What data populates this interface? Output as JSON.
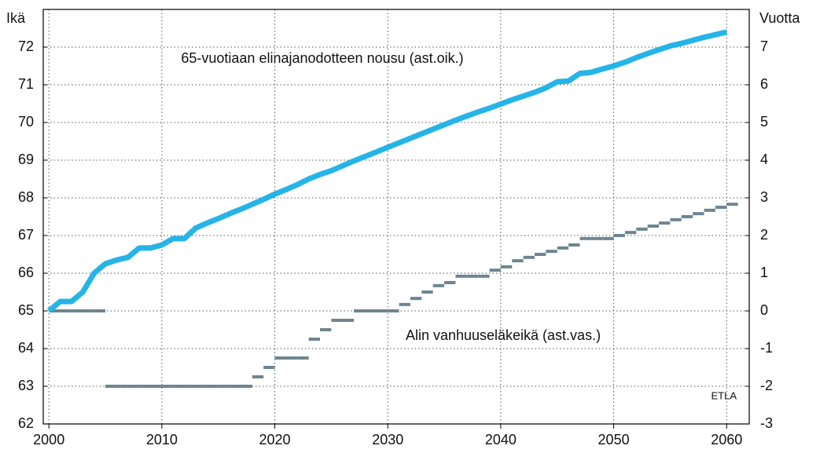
{
  "chart_data": {
    "type": "line",
    "y_label": "Ikä",
    "y2_label": "Vuotta",
    "annotations": [
      "65-vuotiaan elinajanodotteen nousu (ast.oik.)",
      "Alin vanhuuseläkeikä (ast.vas.)"
    ],
    "source": "ETLA",
    "x": [
      2000,
      2001,
      2002,
      2003,
      2004,
      2005,
      2006,
      2007,
      2008,
      2009,
      2010,
      2011,
      2012,
      2013,
      2014,
      2015,
      2016,
      2017,
      2018,
      2019,
      2020,
      2021,
      2022,
      2023,
      2024,
      2025,
      2026,
      2027,
      2028,
      2029,
      2030,
      2031,
      2032,
      2033,
      2034,
      2035,
      2036,
      2037,
      2038,
      2039,
      2040,
      2041,
      2042,
      2043,
      2044,
      2045,
      2046,
      2047,
      2048,
      2049,
      2050,
      2051,
      2052,
      2053,
      2054,
      2055,
      2056,
      2057,
      2058,
      2059,
      2060
    ],
    "series": [
      {
        "name": "65-vuotiaan elinajanodotteen nousu",
        "color": "#25b4e8",
        "axis": "y2",
        "values": [
          0,
          0.25,
          0.25,
          0.5,
          1.0,
          1.25,
          1.35,
          1.42,
          1.67,
          1.67,
          1.75,
          1.92,
          1.92,
          2.2,
          2.33,
          2.45,
          2.58,
          2.7,
          2.83,
          2.96,
          3.1,
          3.22,
          3.35,
          3.5,
          3.62,
          3.72,
          3.85,
          3.98,
          4.1,
          4.22,
          4.34,
          4.46,
          4.58,
          4.7,
          4.82,
          4.94,
          5.06,
          5.17,
          5.28,
          5.38,
          5.49,
          5.6,
          5.7,
          5.8,
          5.92,
          6.08,
          6.1,
          6.3,
          6.33,
          6.42,
          6.5,
          6.6,
          6.72,
          6.83,
          6.93,
          7.03,
          7.1,
          7.18,
          7.26,
          7.33,
          7.4
        ]
      },
      {
        "name": "Alin vanhuuseläkeikä",
        "color": "#6e8591",
        "values": [
          65,
          65,
          65,
          65,
          65,
          63,
          63,
          63,
          63,
          63,
          63,
          63,
          63,
          63,
          63,
          63,
          63,
          63,
          63.25,
          63.5,
          63.75,
          63.75,
          63.75,
          64.25,
          64.5,
          64.75,
          64.75,
          65,
          65,
          65,
          65,
          65.17,
          65.33,
          65.5,
          65.67,
          65.75,
          65.92,
          65.92,
          65.92,
          66.08,
          66.17,
          66.33,
          66.42,
          66.5,
          66.58,
          66.67,
          66.75,
          66.92,
          66.92,
          66.92,
          67,
          67.08,
          67.17,
          67.25,
          67.33,
          67.42,
          67.5,
          67.58,
          67.67,
          67.75,
          67.83
        ]
      }
    ],
    "xlim": [
      1999.5,
      2062
    ],
    "xticks": [
      2000,
      2010,
      2020,
      2030,
      2040,
      2050,
      2060
    ],
    "ylim": [
      62,
      73
    ],
    "yticks": [
      62,
      63,
      64,
      65,
      66,
      67,
      68,
      69,
      70,
      71,
      72
    ],
    "y2lim": [
      -3,
      8
    ],
    "y2ticks": [
      -3,
      -2,
      -1,
      0,
      1,
      2,
      3,
      4,
      5,
      6,
      7
    ],
    "grid": true
  }
}
